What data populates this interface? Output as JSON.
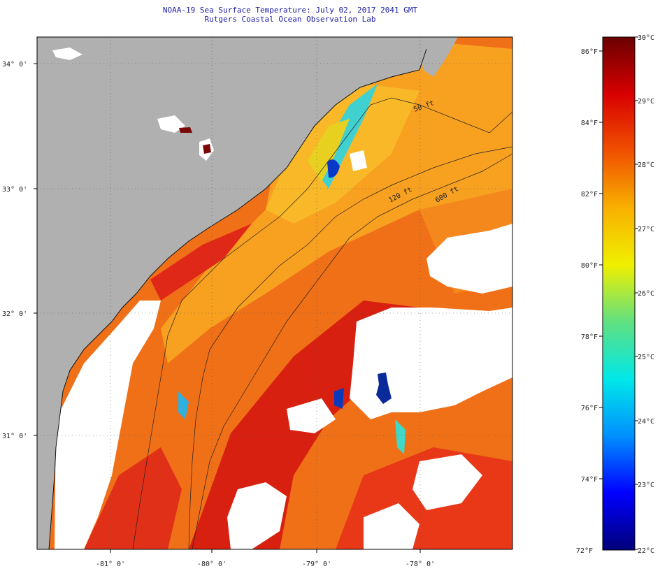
{
  "header": {
    "title": "NOAA-19 Sea Surface Temperature:  July 02, 2017 2041 GMT",
    "subtitle": "Rutgers Coastal Ocean Observation Lab"
  },
  "map": {
    "lat_labels": [
      "34° 0'",
      "33° 0'",
      "32° 0'",
      "31° 0'"
    ],
    "lon_labels": [
      "-81° 0'",
      "-80° 0'",
      "-79° 0'",
      "-78° 0'"
    ],
    "isobath_labels": [
      "50 ft",
      "120 ft",
      "600 ft"
    ],
    "colors": {
      "land": "#b0b0b0",
      "cloud": "#ffffff",
      "sst_warm": "#f05010",
      "sst_hot": "#c81010",
      "sst_mid": "#f8a818",
      "sst_cool": "#20c8e0",
      "sst_cold": "#00209a"
    }
  },
  "colorbar": {
    "f_labels": [
      "86°F",
      "84°F",
      "82°F",
      "80°F",
      "78°F",
      "76°F",
      "74°F",
      "72°F"
    ],
    "c_labels": [
      "30°C",
      "29°C",
      "28°C",
      "27°C",
      "26°C",
      "25°C",
      "24°C",
      "23°C",
      "22°C"
    ],
    "gradient": [
      "#00007a",
      "#0000ff",
      "#0090ff",
      "#00e8e8",
      "#60e080",
      "#f0f000",
      "#f8b000",
      "#f05000",
      "#d80000",
      "#6a0000"
    ]
  }
}
